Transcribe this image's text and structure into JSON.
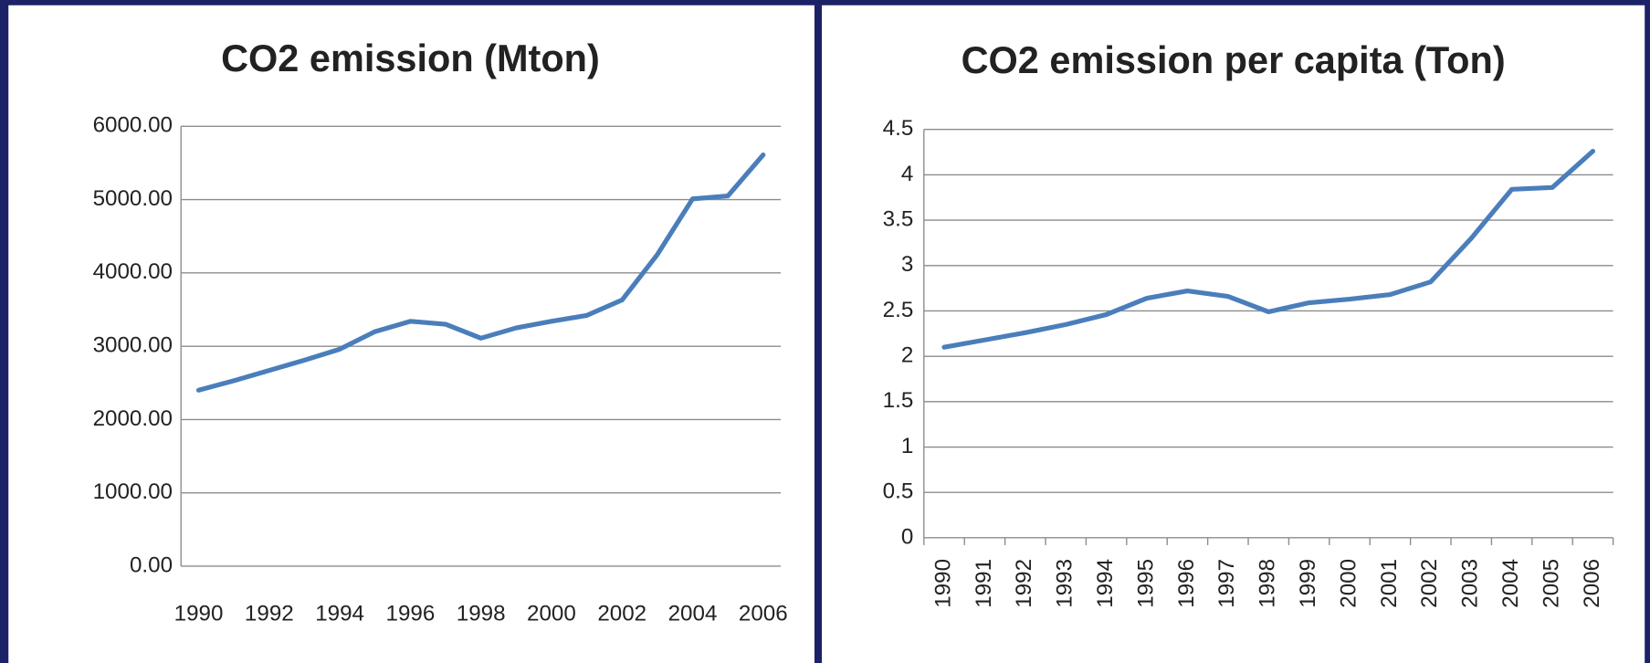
{
  "chart_data": [
    {
      "type": "line",
      "title": "CO2 emission (Mton)",
      "categories": [
        "1990",
        null,
        "1992",
        null,
        "1994",
        null,
        "1996",
        null,
        "1998",
        null,
        "2000",
        null,
        "2002",
        null,
        "2004",
        null,
        "2006"
      ],
      "series": [
        {
          "name": "CO2 emission",
          "color": "#4a7ebb",
          "values": [
            2400,
            2530,
            2670,
            2810,
            2960,
            3200,
            3340,
            3300,
            3110,
            3250,
            3340,
            3420,
            3630,
            4250,
            5010,
            5050,
            5610
          ]
        }
      ],
      "ylim": [
        0,
        6000
      ],
      "yticks": [
        {
          "value": 0,
          "label": "0.00"
        },
        {
          "value": 1000,
          "label": "1000.00"
        },
        {
          "value": 2000,
          "label": "2000.00"
        },
        {
          "value": 3000,
          "label": "3000.00"
        },
        {
          "value": 4000,
          "label": "4000.00"
        },
        {
          "value": 5000,
          "label": "5000.00"
        },
        {
          "value": 6000,
          "label": "6000.00"
        }
      ],
      "grid": true
    },
    {
      "type": "line",
      "title": "CO2 emission per capita (Ton)",
      "categories": [
        "1990",
        "1991",
        "1992",
        "1993",
        "1994",
        "1995",
        "1996",
        "1997",
        "1998",
        "1999",
        "2000",
        "2001",
        "2002",
        "2003",
        "2004",
        "2005",
        "2006"
      ],
      "series": [
        {
          "name": "CO2 emission per capita",
          "color": "#4a7ebb",
          "values": [
            2.1,
            2.18,
            2.26,
            2.35,
            2.46,
            2.64,
            2.72,
            2.66,
            2.49,
            2.59,
            2.63,
            2.68,
            2.82,
            3.3,
            3.84,
            3.86,
            4.26
          ]
        }
      ],
      "ylim": [
        0,
        4.5
      ],
      "yticks": [
        0,
        0.5,
        1,
        1.5,
        2,
        2.5,
        3,
        3.5,
        4,
        4.5
      ],
      "grid": true,
      "rotated_x_labels": true
    }
  ]
}
